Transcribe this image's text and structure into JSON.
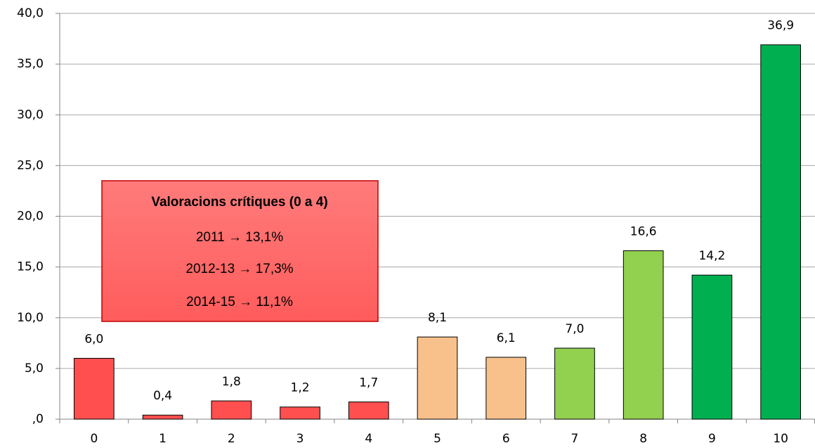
{
  "chart_data": {
    "type": "bar",
    "categories": [
      "0",
      "1",
      "2",
      "3",
      "4",
      "5",
      "6",
      "7",
      "8",
      "9",
      "10"
    ],
    "values": [
      6.0,
      0.4,
      1.8,
      1.2,
      1.7,
      8.1,
      6.1,
      7.0,
      16.6,
      14.2,
      36.9
    ],
    "value_labels": [
      "6,0",
      "0,4",
      "1,8",
      "1,2",
      "1,7",
      "8,1",
      "6,1",
      "7,0",
      "16,6",
      "14,2",
      "36,9"
    ],
    "colors": [
      "#ff4f4f",
      "#ff4f4f",
      "#ff4f4f",
      "#ff4f4f",
      "#ff4f4f",
      "#f8c18c",
      "#f8c18c",
      "#92d050",
      "#92d050",
      "#00b050",
      "#00b050"
    ],
    "ylim": [
      0,
      40
    ],
    "yticks": [
      {
        "value": 0,
        "label": ",0"
      },
      {
        "value": 5,
        "label": "5,0"
      },
      {
        "value": 10,
        "label": "10,0"
      },
      {
        "value": 15,
        "label": "15,0"
      },
      {
        "value": 20,
        "label": "20,0"
      },
      {
        "value": 25,
        "label": "25,0"
      },
      {
        "value": 30,
        "label": "30,0"
      },
      {
        "value": 35,
        "label": "35,0"
      },
      {
        "value": 40,
        "label": "40,0"
      }
    ],
    "grid": true,
    "annotation": {
      "title": "Valoracions crítiques (0 a 4)",
      "lines": [
        "2011 → 13,1%",
        "2012-13 → 17,3%",
        "2014-15 → 11,1%"
      ]
    }
  }
}
